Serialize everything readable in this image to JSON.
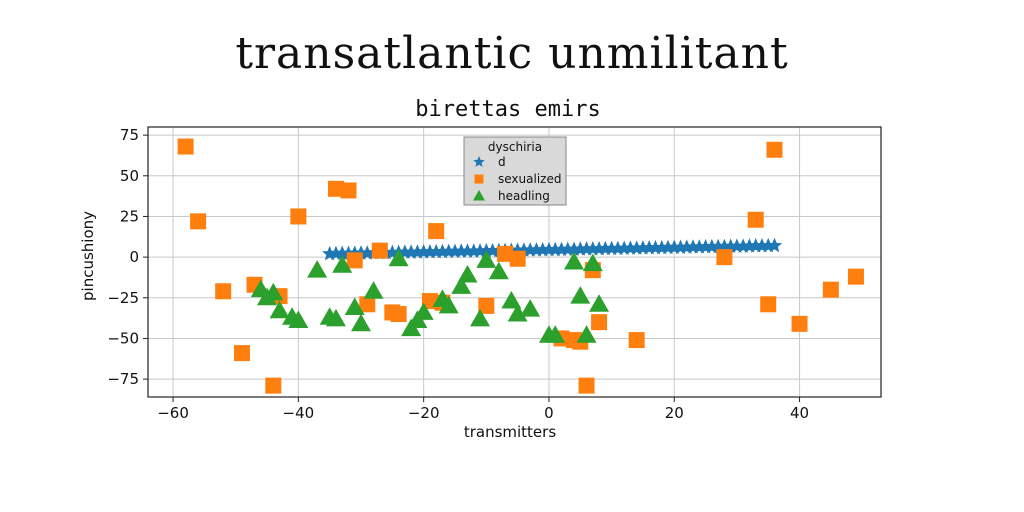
{
  "figure_title": "transatlantic unmilitant",
  "chart_data": {
    "type": "scatter",
    "title": "birettas emirs",
    "xlabel": "transmitters",
    "ylabel": "pincushiony",
    "xlim": [
      -64,
      53
    ],
    "ylim": [
      -86,
      80
    ],
    "xticks": [
      -60,
      -40,
      -20,
      0,
      20,
      40
    ],
    "yticks": [
      75,
      50,
      25,
      0,
      -25,
      -50,
      -75
    ],
    "grid": true,
    "legend": {
      "title": "dyschiria",
      "placement": "top-center"
    },
    "series": [
      {
        "name": "d",
        "marker": "star",
        "color": "#1f77b4",
        "x": [
          -35,
          -34,
          -33,
          -32,
          -31,
          -30,
          -29,
          -28,
          -27,
          -26,
          -25,
          -24,
          -23,
          -22,
          -21,
          -20,
          -19,
          -18,
          -17,
          -16,
          -15,
          -14,
          -13,
          -12,
          -11,
          -10,
          -9,
          -8,
          -7,
          -6,
          -5,
          -4,
          -3,
          -2,
          -1,
          0,
          1,
          2,
          3,
          4,
          5,
          6,
          7,
          8,
          9,
          10,
          11,
          12,
          13,
          14,
          15,
          16,
          17,
          18,
          19,
          20,
          21,
          22,
          23,
          24,
          25,
          26,
          27,
          28,
          29,
          30,
          31,
          32,
          33,
          34,
          35,
          36
        ],
        "y": [
          2,
          2.1,
          2.2,
          2.2,
          2.3,
          2.4,
          2.4,
          2.5,
          2.6,
          2.7,
          2.7,
          2.8,
          2.9,
          2.9,
          3,
          3.1,
          3.1,
          3.2,
          3.3,
          3.4,
          3.4,
          3.5,
          3.6,
          3.6,
          3.7,
          3.8,
          3.8,
          3.9,
          4,
          4.1,
          4.1,
          4.2,
          4.3,
          4.3,
          4.4,
          4.5,
          4.5,
          4.6,
          4.7,
          4.7,
          4.8,
          4.9,
          5,
          5,
          5.1,
          5.2,
          5.2,
          5.3,
          5.4,
          5.4,
          5.5,
          5.6,
          5.7,
          5.7,
          5.8,
          5.9,
          5.9,
          6,
          6.1,
          6.1,
          6.2,
          6.3,
          6.4,
          6.4,
          6.5,
          6.6,
          6.6,
          6.7,
          6.8,
          6.8,
          6.9,
          7
        ]
      },
      {
        "name": "sexualized",
        "marker": "square",
        "color": "#ff7f0e",
        "x": [
          -58,
          -56,
          -52,
          -49,
          -47,
          -44,
          -43,
          -40,
          -34,
          -32,
          -31,
          -29,
          -27,
          -25,
          -24,
          -19,
          -18,
          -17,
          -10,
          -7,
          -5,
          2,
          4,
          5,
          6,
          7,
          8,
          14,
          28,
          33,
          35,
          36,
          40,
          45,
          49
        ],
        "y": [
          68,
          22,
          -21,
          -59,
          -17,
          -79,
          -24,
          25,
          42,
          41,
          -2,
          -29,
          4,
          -34,
          -35,
          -27,
          16,
          -28,
          -30,
          2,
          -1,
          -50,
          -51,
          -52,
          -79,
          -8,
          -40,
          -51,
          0,
          23,
          -29,
          66,
          -41,
          -20,
          -12
        ]
      },
      {
        "name": "headling",
        "marker": "triangle",
        "color": "#2ca02c",
        "x": [
          -46,
          -45,
          -44,
          -43,
          -41,
          -40,
          -37,
          -35,
          -34,
          -33,
          -31,
          -30,
          -28,
          -24,
          -22,
          -21,
          -20,
          -17,
          -16,
          -14,
          -13,
          -11,
          -10,
          -8,
          -6,
          -5,
          -3,
          0,
          1,
          4,
          5,
          6,
          7,
          8
        ],
        "y": [
          -20,
          -25,
          -22,
          -33,
          -37,
          -39,
          -8,
          -37,
          -38,
          -5,
          -31,
          -41,
          -21,
          -1,
          -44,
          -39,
          -34,
          -26,
          -30,
          -18,
          -11,
          -38,
          -2,
          -9,
          -27,
          -35,
          -32,
          -48,
          -48,
          -3,
          -24,
          -48,
          -4,
          -29
        ]
      }
    ]
  }
}
